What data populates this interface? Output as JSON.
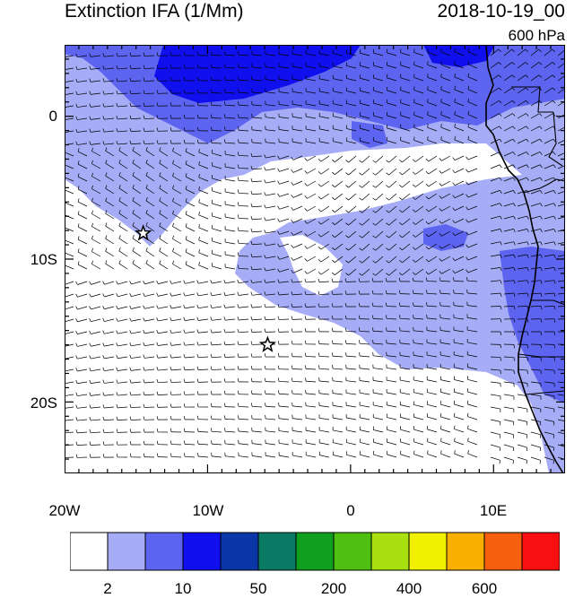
{
  "title": "Extinction IFA (1/Mm)",
  "datetime": "2018-10-19_00",
  "level": "600 hPa",
  "lat_labels": [
    "0",
    "10S",
    "20S"
  ],
  "lon_labels": [
    "20W",
    "10W",
    "0",
    "10E"
  ],
  "colorbar": {
    "colors": [
      "#ffffff",
      "#a6acf5",
      "#5c64f0",
      "#1010ee",
      "#0a36a8",
      "#0a7a64",
      "#10a020",
      "#50c010",
      "#a8e010",
      "#f0f000",
      "#f8b000",
      "#f86010",
      "#f81010"
    ],
    "labels": [
      "2",
      "10",
      "50",
      "200",
      "400",
      "600"
    ]
  },
  "markers": [
    {
      "name": "star-1",
      "lon": -14.5,
      "lat": -8.2
    },
    {
      "name": "star-2",
      "lon": -5.8,
      "lat": -16.0
    }
  ],
  "map": {
    "lon_range": [
      -20,
      15
    ],
    "lat_range": [
      -25,
      5
    ],
    "field_colors": {
      "low": "#ffffff",
      "mid": "#a6acf5",
      "high": "#5c64f0",
      "max": "#1010ee"
    }
  }
}
